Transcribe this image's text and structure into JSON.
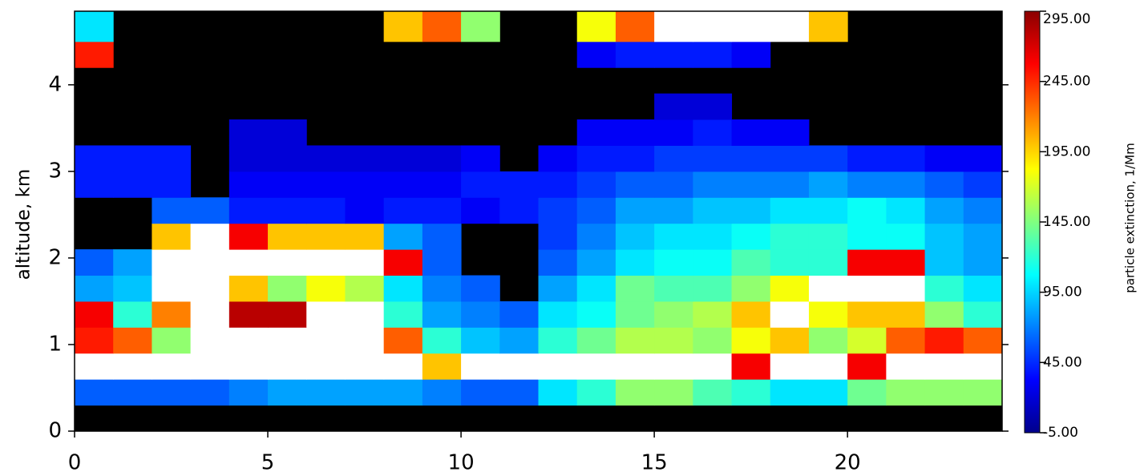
{
  "chart_data": {
    "type": "heatmap",
    "y_label": "altitude, km",
    "colorbar_label": "particle extinction, 1/Mm",
    "xlim": [
      0,
      24
    ],
    "xticks": [
      0,
      5,
      10,
      15,
      20
    ],
    "ylim": [
      0,
      4.85
    ],
    "yticks": [
      0,
      1,
      2,
      3,
      4
    ],
    "x_bins": [
      0,
      1,
      2,
      3,
      4,
      5,
      6,
      7,
      8,
      9,
      10,
      11,
      12,
      13,
      14,
      15,
      16,
      17,
      18,
      19,
      20,
      21,
      22,
      23,
      24
    ],
    "y_bins": [
      0,
      0.3,
      0.6,
      0.9,
      1.2,
      1.5,
      1.8,
      2.1,
      2.4,
      2.7,
      3.0,
      3.3,
      3.6,
      3.9,
      4.2,
      4.5,
      4.85
    ],
    "values": [
      [
        null,
        null,
        null,
        null,
        null,
        null,
        null,
        null,
        null,
        null,
        null,
        null,
        null,
        null,
        null,
        null,
        null,
        null,
        null,
        null,
        null,
        null,
        null,
        null
      ],
      [
        60,
        60,
        60,
        60,
        70,
        80,
        80,
        80,
        80,
        70,
        60,
        60,
        100,
        120,
        150,
        150,
        130,
        120,
        100,
        100,
        140,
        150,
        150,
        150
      ],
      [
        320,
        320,
        320,
        320,
        320,
        320,
        320,
        320,
        320,
        200,
        320,
        320,
        320,
        320,
        320,
        320,
        320,
        260,
        320,
        300,
        260,
        320,
        320,
        320
      ],
      [
        250,
        230,
        150,
        320,
        320,
        320,
        320,
        320,
        230,
        120,
        90,
        80,
        120,
        140,
        160,
        160,
        150,
        180,
        200,
        150,
        170,
        230,
        250,
        230
      ],
      [
        260,
        120,
        220,
        320,
        280,
        280,
        320,
        300,
        120,
        80,
        70,
        60,
        100,
        110,
        140,
        150,
        160,
        200,
        320,
        180,
        200,
        200,
        150,
        120
      ],
      [
        80,
        90,
        320,
        320,
        200,
        150,
        180,
        160,
        100,
        70,
        60,
        null,
        80,
        100,
        140,
        130,
        130,
        150,
        180,
        320,
        320,
        320,
        120,
        100
      ],
      [
        60,
        80,
        320,
        320,
        320,
        320,
        320,
        320,
        260,
        60,
        null,
        null,
        60,
        80,
        100,
        110,
        110,
        130,
        120,
        120,
        260,
        260,
        90,
        80
      ],
      [
        null,
        null,
        200,
        320,
        260,
        200,
        200,
        200,
        80,
        60,
        null,
        null,
        50,
        70,
        90,
        100,
        100,
        110,
        120,
        120,
        110,
        110,
        90,
        80
      ],
      [
        null,
        null,
        60,
        60,
        40,
        40,
        40,
        30,
        40,
        40,
        30,
        40,
        50,
        60,
        80,
        80,
        90,
        90,
        100,
        100,
        110,
        100,
        80,
        70
      ],
      [
        40,
        40,
        40,
        null,
        30,
        30,
        30,
        30,
        30,
        30,
        40,
        40,
        40,
        50,
        60,
        60,
        70,
        70,
        70,
        80,
        70,
        70,
        60,
        50
      ],
      [
        40,
        40,
        40,
        null,
        20,
        20,
        20,
        20,
        20,
        20,
        30,
        null,
        30,
        40,
        40,
        50,
        50,
        50,
        50,
        50,
        40,
        40,
        30,
        30
      ],
      [
        null,
        null,
        null,
        null,
        20,
        20,
        null,
        null,
        null,
        null,
        null,
        null,
        null,
        30,
        30,
        30,
        40,
        30,
        30,
        null,
        null,
        null,
        null,
        null
      ],
      [
        null,
        null,
        null,
        null,
        null,
        null,
        null,
        null,
        null,
        null,
        null,
        null,
        null,
        null,
        null,
        20,
        20,
        null,
        null,
        null,
        null,
        null,
        null,
        null
      ],
      [
        null,
        null,
        null,
        null,
        null,
        null,
        null,
        null,
        null,
        null,
        null,
        null,
        null,
        null,
        null,
        null,
        null,
        null,
        null,
        null,
        null,
        null,
        null,
        null
      ],
      [
        250,
        null,
        null,
        null,
        null,
        null,
        null,
        null,
        null,
        null,
        null,
        null,
        null,
        30,
        40,
        40,
        40,
        30,
        null,
        null,
        null,
        null,
        null,
        null
      ],
      [
        100,
        null,
        null,
        null,
        null,
        null,
        null,
        null,
        200,
        230,
        150,
        null,
        null,
        180,
        230,
        320,
        320,
        320,
        320,
        200,
        null,
        null,
        null,
        null
      ]
    ],
    "colorbar_lim": [
      -5,
      295
    ],
    "colorbar_ticks": [
      {
        "value": -5,
        "label": "-5.00"
      },
      {
        "value": 45,
        "label": "45.00"
      },
      {
        "value": 95,
        "label": "95.00"
      },
      {
        "value": 145,
        "label": "145.00"
      },
      {
        "value": 195,
        "label": "195.00"
      },
      {
        "value": 245,
        "label": "245.00"
      },
      {
        "value": 295,
        "label": "295.00"
      }
    ],
    "colormap": [
      "#00008b",
      "#0000ff",
      "#0080ff",
      "#00ffff",
      "#80ff80",
      "#ffff00",
      "#ff8000",
      "#ff0000",
      "#8b0000"
    ],
    "over_color": "#ffffff",
    "missing_color": "#000000"
  }
}
